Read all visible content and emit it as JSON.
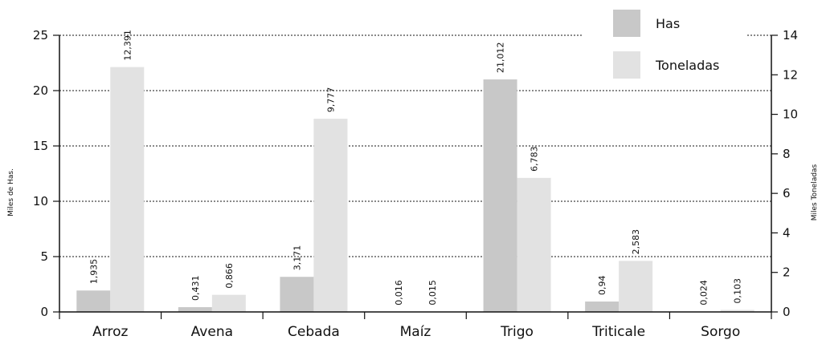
{
  "chart_data": {
    "type": "bar",
    "categories": [
      "Arroz",
      "Avena",
      "Cebada",
      "Maíz",
      "Trigo",
      "Triticale",
      "Sorgo"
    ],
    "series": [
      {
        "name": "Has",
        "axis": "left",
        "color": "#c8c8c8",
        "values": [
          1.935,
          0.431,
          3.171,
          0.016,
          21.012,
          0.94,
          0.024
        ],
        "labels": [
          "1,935",
          "0,431",
          "3,171",
          "0,016",
          "21,012",
          "0,94",
          "0,024"
        ]
      },
      {
        "name": "Toneladas",
        "axis": "right",
        "color": "#e2e2e2",
        "values": [
          12.391,
          0.866,
          9.777,
          0.015,
          6.783,
          2.583,
          0.103
        ],
        "labels": [
          "12,391",
          "0,866",
          "9,777",
          "0,015",
          "6,783",
          "2,583",
          "0,103"
        ]
      }
    ],
    "ylabel": "Miles de Has.",
    "ylabel_right": "Miles Toneladas",
    "ylim": [
      0,
      25
    ],
    "ylim_right": [
      0,
      14
    ],
    "yticks": [
      "0",
      "5",
      "10",
      "15",
      "20",
      "25"
    ],
    "yticks_right": [
      "0",
      "2",
      "4",
      "6",
      "8",
      "10",
      "12",
      "14"
    ],
    "grid": true,
    "legend_position": "top-right"
  }
}
